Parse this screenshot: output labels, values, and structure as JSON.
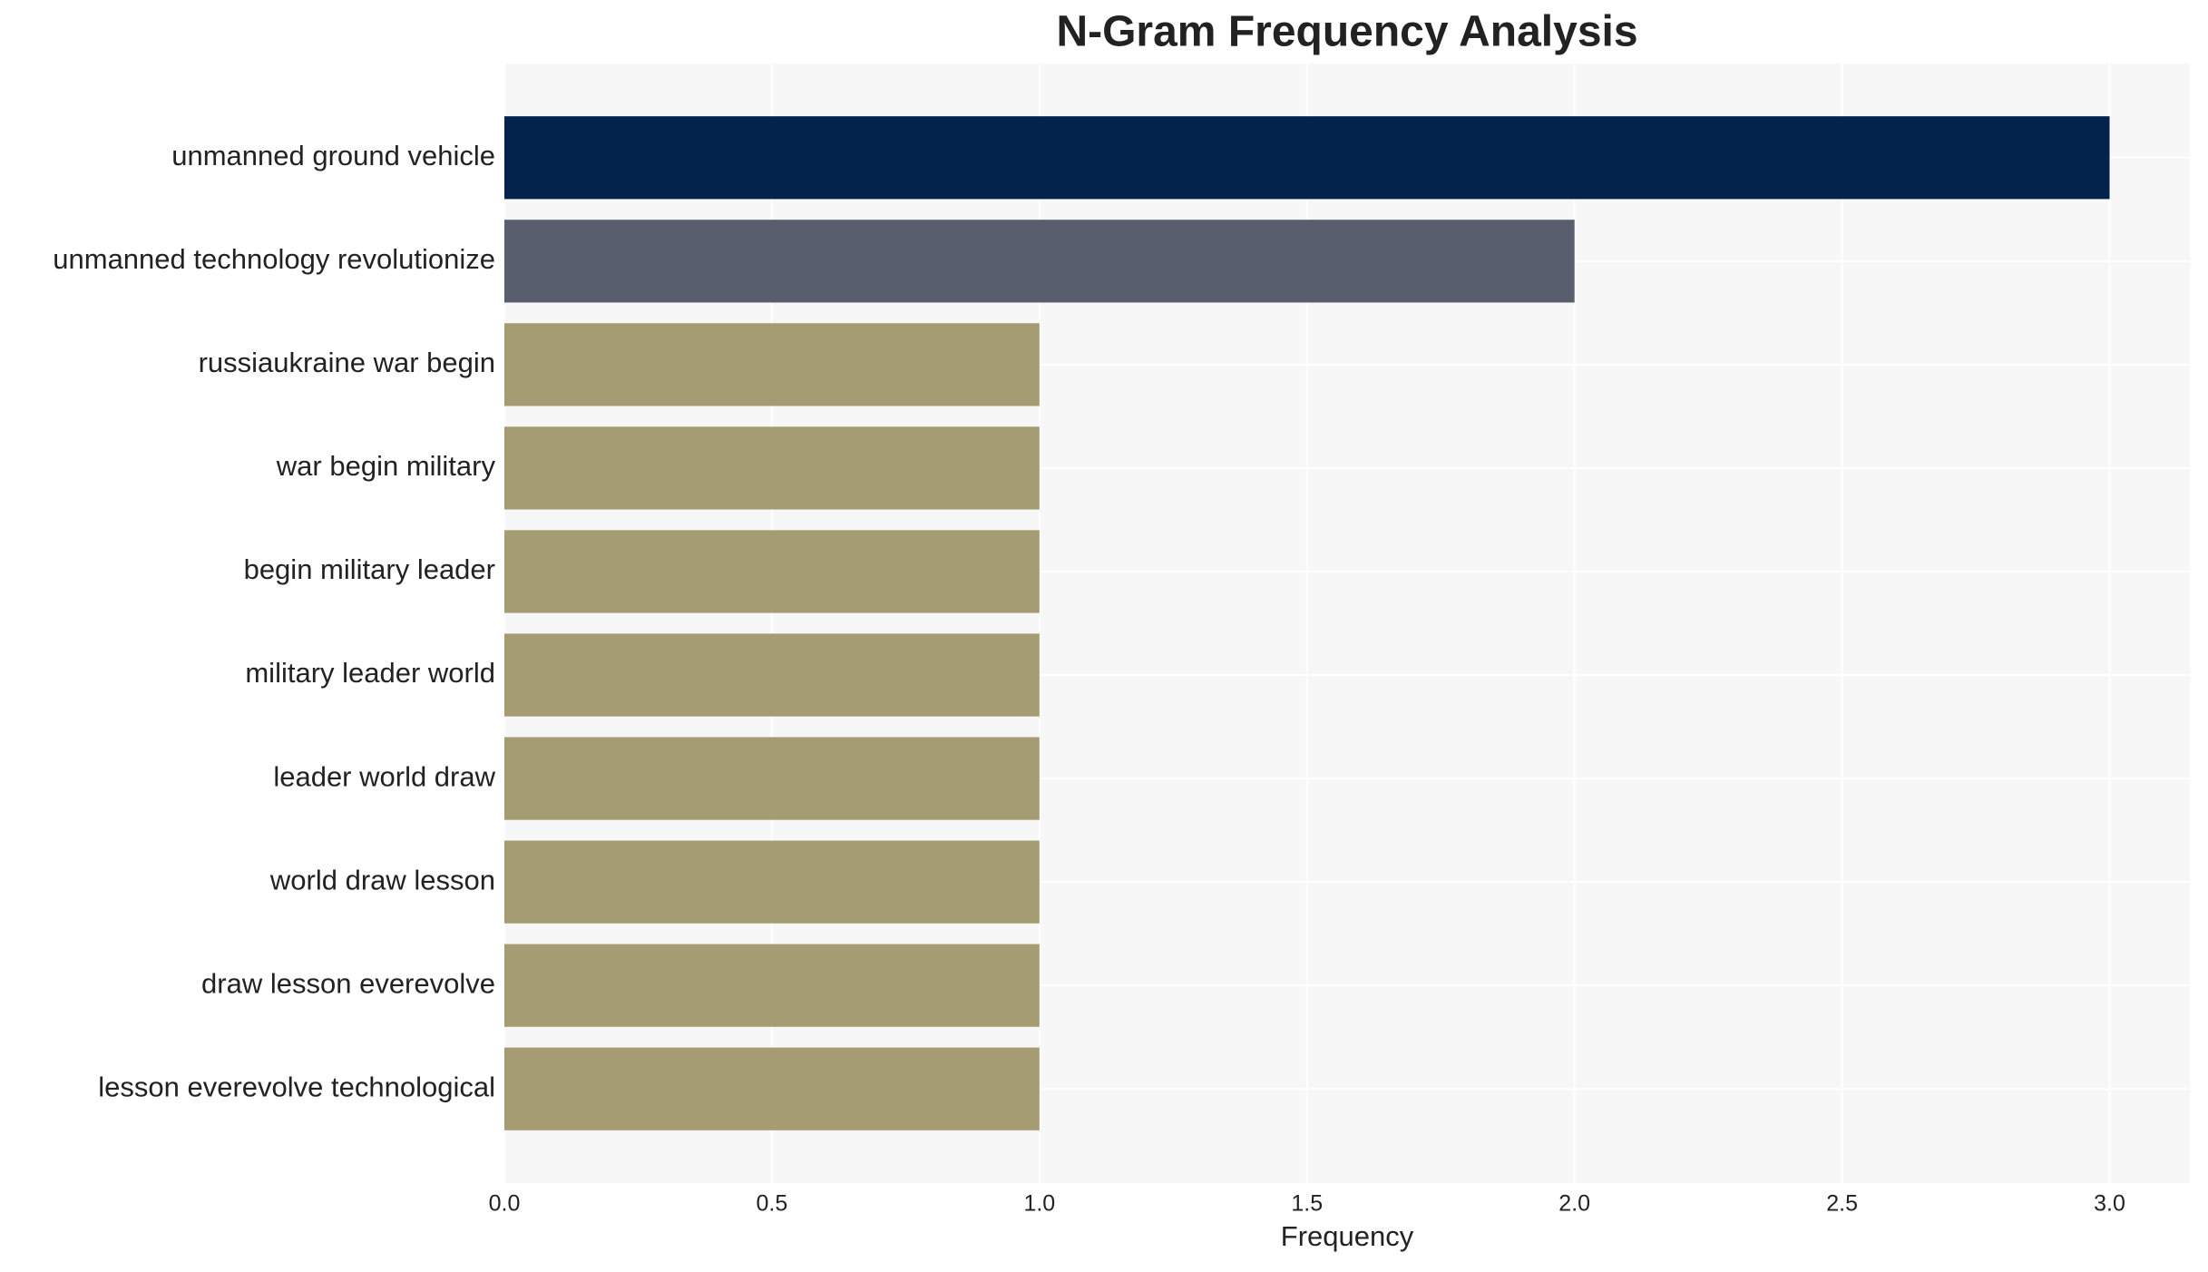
{
  "chart_data": {
    "type": "barh",
    "title": "N-Gram Frequency Analysis",
    "x_label": "Frequency",
    "categories": [
      "unmanned ground vehicle",
      "unmanned technology revolutionize",
      "russiaukraine war begin",
      "war begin military",
      "begin military leader",
      "military leader world",
      "leader world draw",
      "world draw lesson",
      "draw lesson everevolve",
      "lesson everevolve technological"
    ],
    "values": [
      3,
      2,
      1,
      1,
      1,
      1,
      1,
      1,
      1,
      1
    ],
    "colors": [
      "#03224c",
      "#595e6e",
      "#a59c74",
      "#a59c74",
      "#a59c74",
      "#a59c74",
      "#a59c74",
      "#a59c74",
      "#a59c74",
      "#a59c74"
    ],
    "xlim": [
      0,
      3.15
    ],
    "xticks": [
      {
        "value": 0,
        "label": "0.0"
      },
      0.5,
      {
        "value": 1,
        "label": "1.0"
      },
      1.5,
      {
        "value": 2,
        "label": "2.0"
      },
      2.5,
      {
        "value": 3,
        "label": "3.0"
      }
    ],
    "grid": true
  }
}
